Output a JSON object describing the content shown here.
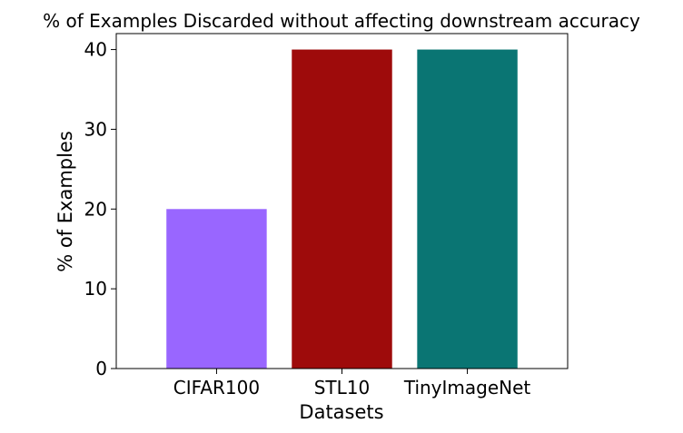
{
  "chart_data": {
    "type": "bar",
    "title": "% of Examples Discarded without affecting downstream accuracy",
    "xlabel": "Datasets",
    "ylabel": "% of Examples",
    "categories": [
      "CIFAR100",
      "STL10",
      "TinyImageNet"
    ],
    "values": [
      20,
      40,
      40
    ],
    "colors": [
      "#9966ff",
      "#9e0b0b",
      "#0a7573"
    ],
    "ylim": [
      0,
      42
    ],
    "yticks": [
      0,
      10,
      20,
      30,
      40
    ],
    "grid": false,
    "legend": "none"
  }
}
